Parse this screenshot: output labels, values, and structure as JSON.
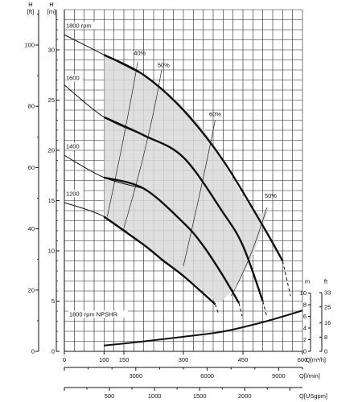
{
  "chart_data": {
    "type": "line",
    "axes": {
      "left_ft": {
        "label_top": "H",
        "label_unit": "[ft]",
        "ticks": [
          0,
          20,
          40,
          60,
          80,
          100
        ],
        "range": [
          0,
          112
        ]
      },
      "left_m": {
        "label_top": "H",
        "label_unit": "[m]",
        "ticks": [
          0,
          5,
          10,
          15,
          20,
          25,
          30
        ],
        "range": [
          0,
          34
        ]
      },
      "x_m3h": {
        "label": "Q[m³/h]",
        "ticks": [
          0,
          100,
          150,
          300,
          450,
          600
        ],
        "range": [
          0,
          600
        ]
      },
      "x_lmin": {
        "label": "Q[l/min]",
        "ticks": [
          0,
          3000,
          6000,
          9000
        ],
        "range": [
          0,
          10000
        ]
      },
      "x_usgpm": {
        "label": "Q[USgpm]",
        "ticks": [
          0,
          500,
          1000,
          1500,
          2000
        ],
        "range": [
          0,
          2640
        ]
      },
      "npshr_m": {
        "label": "m",
        "ticks": [
          0,
          2,
          4,
          6,
          8,
          10
        ],
        "range": [
          0,
          10
        ]
      },
      "npshr_ft": {
        "label": "ft",
        "ticks": [
          0,
          8,
          16,
          25,
          33
        ],
        "range": [
          0,
          33
        ]
      }
    },
    "grid": true,
    "series": [
      {
        "name": "1800 rpm",
        "x": [
          0,
          100,
          200,
          300,
          400,
          500,
          550
        ],
        "y": [
          31.5,
          29.5,
          27.5,
          24,
          19,
          12.5,
          9
        ]
      },
      {
        "name": "1600",
        "x": [
          0,
          100,
          200,
          300,
          400,
          450,
          500
        ],
        "y": [
          26.5,
          23.3,
          21.5,
          19.3,
          13.8,
          10.5,
          5
        ]
      },
      {
        "name": "1400",
        "x": [
          0,
          100,
          200,
          300,
          350,
          400,
          440
        ],
        "y": [
          19.5,
          17.3,
          16.2,
          12.8,
          10.5,
          7.5,
          4.8
        ]
      },
      {
        "name": "1200",
        "x": [
          0,
          100,
          200,
          250,
          300,
          380
        ],
        "y": [
          14.8,
          13.4,
          10.6,
          9,
          7.5,
          4.7
        ]
      }
    ],
    "efficiency_labels": [
      "40%",
      "50%",
      "60%",
      "50%"
    ],
    "npshr": {
      "name": "1800 rpm NPSHR",
      "x": [
        100,
        200,
        300,
        400,
        500,
        600
      ],
      "y": [
        1,
        1.7,
        2.5,
        3.4,
        5,
        7
      ]
    }
  }
}
